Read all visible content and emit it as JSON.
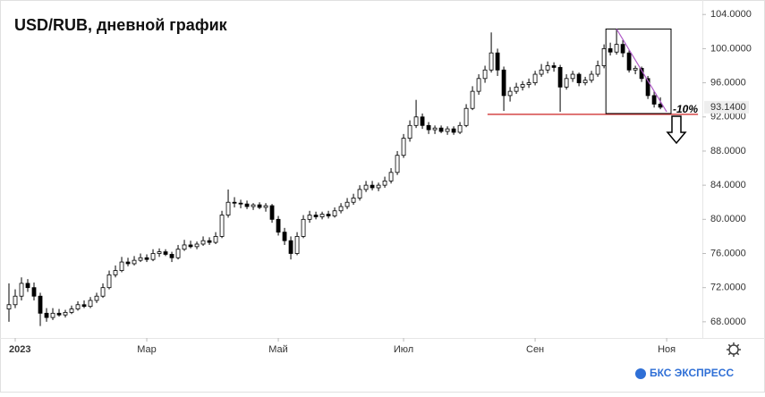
{
  "chart_data": {
    "type": "candlestick",
    "title": "USD/RUB, дневной график",
    "brand": "БКС ЭКСПРЕСС",
    "color_up": "#ffffff",
    "color_down": "#000000",
    "wick_color": "#000000",
    "xlim": [
      -1.43,
      110.7
    ],
    "ylim": [
      66.1,
      105.7
    ],
    "xticks": [
      {
        "value": 1,
        "label": "2023"
      },
      {
        "value": 22,
        "label": "Мар"
      },
      {
        "value": 43,
        "label": "Май"
      },
      {
        "value": 63,
        "label": "Июл"
      },
      {
        "value": 84,
        "label": "Сен"
      },
      {
        "value": 105,
        "label": "Ноя"
      }
    ],
    "yticks": [
      {
        "value": 68,
        "label": "68.0000"
      },
      {
        "value": 72,
        "label": "72.0000"
      },
      {
        "value": 76,
        "label": "76.0000"
      },
      {
        "value": 80,
        "label": "80.0000"
      },
      {
        "value": 84,
        "label": "84.0000"
      },
      {
        "value": 88,
        "label": "88.0000"
      },
      {
        "value": 92,
        "label": "92.0000"
      },
      {
        "value": 96,
        "label": "96.0000"
      },
      {
        "value": 100,
        "label": "100.0000"
      },
      {
        "value": 104,
        "label": "104.0000"
      }
    ],
    "last_price": {
      "value": 93.14,
      "label": "93.1400"
    },
    "ohlc": [
      [
        69.5,
        72.5,
        68,
        70
      ],
      [
        70,
        71.8,
        69.6,
        71
      ],
      [
        71,
        73.2,
        70.5,
        72.5
      ],
      [
        72.5,
        73,
        71.5,
        72
      ],
      [
        72,
        72.6,
        70.5,
        71
      ],
      [
        71,
        71.4,
        67.5,
        69
      ],
      [
        69,
        69.6,
        68,
        68.5
      ],
      [
        68.5,
        69.6,
        68.2,
        69
      ],
      [
        69,
        69.5,
        68.6,
        68.8
      ],
      [
        68.8,
        69.4,
        68.5,
        69.1
      ],
      [
        69.1,
        69.9,
        68.9,
        69.5
      ],
      [
        69.5,
        70.4,
        69.3,
        70
      ],
      [
        70,
        70.5,
        69.6,
        69.8
      ],
      [
        69.8,
        70.9,
        69.6,
        70.5
      ],
      [
        70.5,
        71.4,
        70.2,
        71
      ],
      [
        71,
        72.5,
        70.8,
        72
      ],
      [
        72,
        74,
        71.8,
        73.5
      ],
      [
        73.5,
        74.6,
        73.2,
        74
      ],
      [
        74,
        75.6,
        73.8,
        75
      ],
      [
        75,
        75.5,
        74.5,
        74.8
      ],
      [
        74.8,
        75.7,
        74.6,
        75.2
      ],
      [
        75.2,
        76,
        75,
        75.5
      ],
      [
        75.5,
        75.9,
        75,
        75.3
      ],
      [
        75.3,
        76.5,
        75.1,
        76
      ],
      [
        76,
        76.6,
        75.6,
        76.2
      ],
      [
        76.2,
        76.5,
        75.7,
        75.9
      ],
      [
        75.9,
        76.2,
        75,
        75.5
      ],
      [
        75.5,
        77,
        75.3,
        76.5
      ],
      [
        76.5,
        77.6,
        76.3,
        77
      ],
      [
        77,
        77.5,
        76.6,
        76.8
      ],
      [
        76.8,
        77.4,
        76.5,
        77.1
      ],
      [
        77.1,
        78,
        76.9,
        77.5
      ],
      [
        77.5,
        77.9,
        77,
        77.3
      ],
      [
        77.3,
        78.5,
        77.1,
        78
      ],
      [
        78,
        81,
        77.8,
        80.5
      ],
      [
        80.5,
        83.5,
        80.2,
        82
      ],
      [
        82,
        82.6,
        81.4,
        81.9
      ],
      [
        81.9,
        82.3,
        81.3,
        81.8
      ],
      [
        81.8,
        82.2,
        81.2,
        81.5
      ],
      [
        81.5,
        81.9,
        81.1,
        81.7
      ],
      [
        81.7,
        82,
        81.2,
        81.4
      ],
      [
        81.4,
        81.9,
        80.9,
        81.6
      ],
      [
        81.6,
        81.8,
        79.6,
        80
      ],
      [
        80,
        80.4,
        78.1,
        78.5
      ],
      [
        78.5,
        79,
        77,
        77.5
      ],
      [
        77.5,
        78,
        75.3,
        76
      ],
      [
        76,
        78.5,
        75.8,
        78
      ],
      [
        78,
        80.5,
        77.8,
        80
      ],
      [
        80,
        81,
        79.6,
        80.5
      ],
      [
        80.5,
        80.9,
        80,
        80.3
      ],
      [
        80.3,
        80.9,
        80,
        80.6
      ],
      [
        80.6,
        81,
        80.1,
        80.4
      ],
      [
        80.4,
        81.4,
        80.2,
        81
      ],
      [
        81,
        81.9,
        80.7,
        81.5
      ],
      [
        81.5,
        82.5,
        81.2,
        82
      ],
      [
        82,
        83,
        81.7,
        82.5
      ],
      [
        82.5,
        84,
        82.2,
        83.5
      ],
      [
        83.5,
        84.5,
        83.2,
        84
      ],
      [
        84,
        84.5,
        83.4,
        83.7
      ],
      [
        83.7,
        84.3,
        83.3,
        84
      ],
      [
        84,
        85,
        83.7,
        84.5
      ],
      [
        84.5,
        86,
        84.2,
        85.5
      ],
      [
        85.5,
        88,
        85.2,
        87.5
      ],
      [
        87.5,
        90,
        87.2,
        89.5
      ],
      [
        89.5,
        91.6,
        89.1,
        91
      ],
      [
        91,
        94,
        90.7,
        92
      ],
      [
        92,
        92.4,
        90.6,
        91
      ],
      [
        91,
        91.4,
        90,
        90.5
      ],
      [
        90.5,
        91,
        90,
        90.7
      ],
      [
        90.7,
        91,
        90.1,
        90.3
      ],
      [
        90.3,
        90.9,
        89.9,
        90.6
      ],
      [
        90.6,
        90.9,
        89.9,
        90.2
      ],
      [
        90.2,
        91.4,
        90,
        91
      ],
      [
        91,
        93.5,
        90.8,
        93
      ],
      [
        93,
        95.6,
        92.8,
        95
      ],
      [
        95,
        97,
        94.6,
        96.5
      ],
      [
        96.5,
        98,
        96,
        97.5
      ],
      [
        97.5,
        101.9,
        97.2,
        99.5
      ],
      [
        99.5,
        100,
        96.8,
        97.5
      ],
      [
        97.5,
        97.9,
        92.7,
        94.5
      ],
      [
        94.5,
        95.5,
        93.8,
        95
      ],
      [
        95,
        96,
        94.7,
        95.5
      ],
      [
        95.5,
        96.2,
        95.1,
        95.8
      ],
      [
        95.8,
        96.5,
        95.4,
        96
      ],
      [
        96,
        97.4,
        95.7,
        97
      ],
      [
        97,
        98.2,
        96.7,
        97.5
      ],
      [
        97.5,
        98.5,
        97.1,
        98
      ],
      [
        98,
        98.4,
        97.3,
        97.8
      ],
      [
        97.8,
        98.1,
        92.6,
        95.5
      ],
      [
        95.5,
        97,
        95.2,
        96.5
      ],
      [
        96.5,
        97.4,
        96.1,
        97
      ],
      [
        97,
        97.2,
        95.6,
        96
      ],
      [
        96,
        96.7,
        95.7,
        96.3
      ],
      [
        96.3,
        97.4,
        96,
        97
      ],
      [
        97,
        98.6,
        96.7,
        98
      ],
      [
        98,
        100.5,
        97.7,
        100
      ],
      [
        100,
        100.7,
        99.2,
        99.6
      ],
      [
        99.6,
        102.3,
        99.3,
        100.5
      ],
      [
        100.5,
        101,
        99,
        99.5
      ],
      [
        99.5,
        99.8,
        97.2,
        97.5
      ],
      [
        97.5,
        98,
        97,
        97.7
      ],
      [
        97.7,
        97.9,
        96.1,
        96.5
      ],
      [
        96.5,
        96.8,
        94.1,
        94.5
      ],
      [
        94.5,
        95,
        93.1,
        93.5
      ],
      [
        93.5,
        94.3,
        92.9,
        93.14
      ]
    ],
    "annotations": {
      "level": {
        "value": 92.3,
        "x": [
          76.4,
          110
        ],
        "color": "#cc2222"
      },
      "box": {
        "x": [
          95.3,
          105.7
        ],
        "y": [
          92.4,
          102.3
        ]
      },
      "trend": {
        "x": [
          97,
          105
        ],
        "y": [
          102.3,
          92.6
        ],
        "color": "#b05cc8"
      },
      "label": "-10%"
    }
  }
}
